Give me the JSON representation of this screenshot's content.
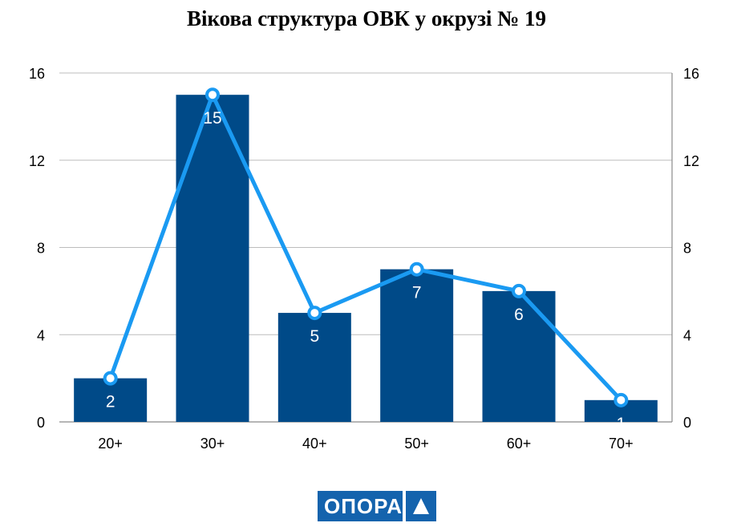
{
  "title": "Вікова структура ОВК у окрузі № 19",
  "chart_data": {
    "type": "bar+line",
    "categories": [
      "20+",
      "30+",
      "40+",
      "50+",
      "60+",
      "70+"
    ],
    "values": [
      2,
      15,
      5,
      7,
      6,
      1
    ],
    "line_values": [
      2,
      15,
      5,
      7,
      6,
      1
    ],
    "data_labels": [
      "2",
      "15",
      "5",
      "7",
      "6",
      "1"
    ],
    "ylim": [
      0,
      16
    ],
    "y_ticks": [
      "0",
      "4",
      "8",
      "12",
      "16"
    ],
    "y2_ticks": [
      "0",
      "4",
      "8",
      "12",
      "16"
    ],
    "grid": true,
    "legend": "none",
    "bar_color": "#004a88",
    "line_color": "#1a9af2"
  },
  "logo": {
    "text": "ОПОРА",
    "color": "#1463ad"
  }
}
